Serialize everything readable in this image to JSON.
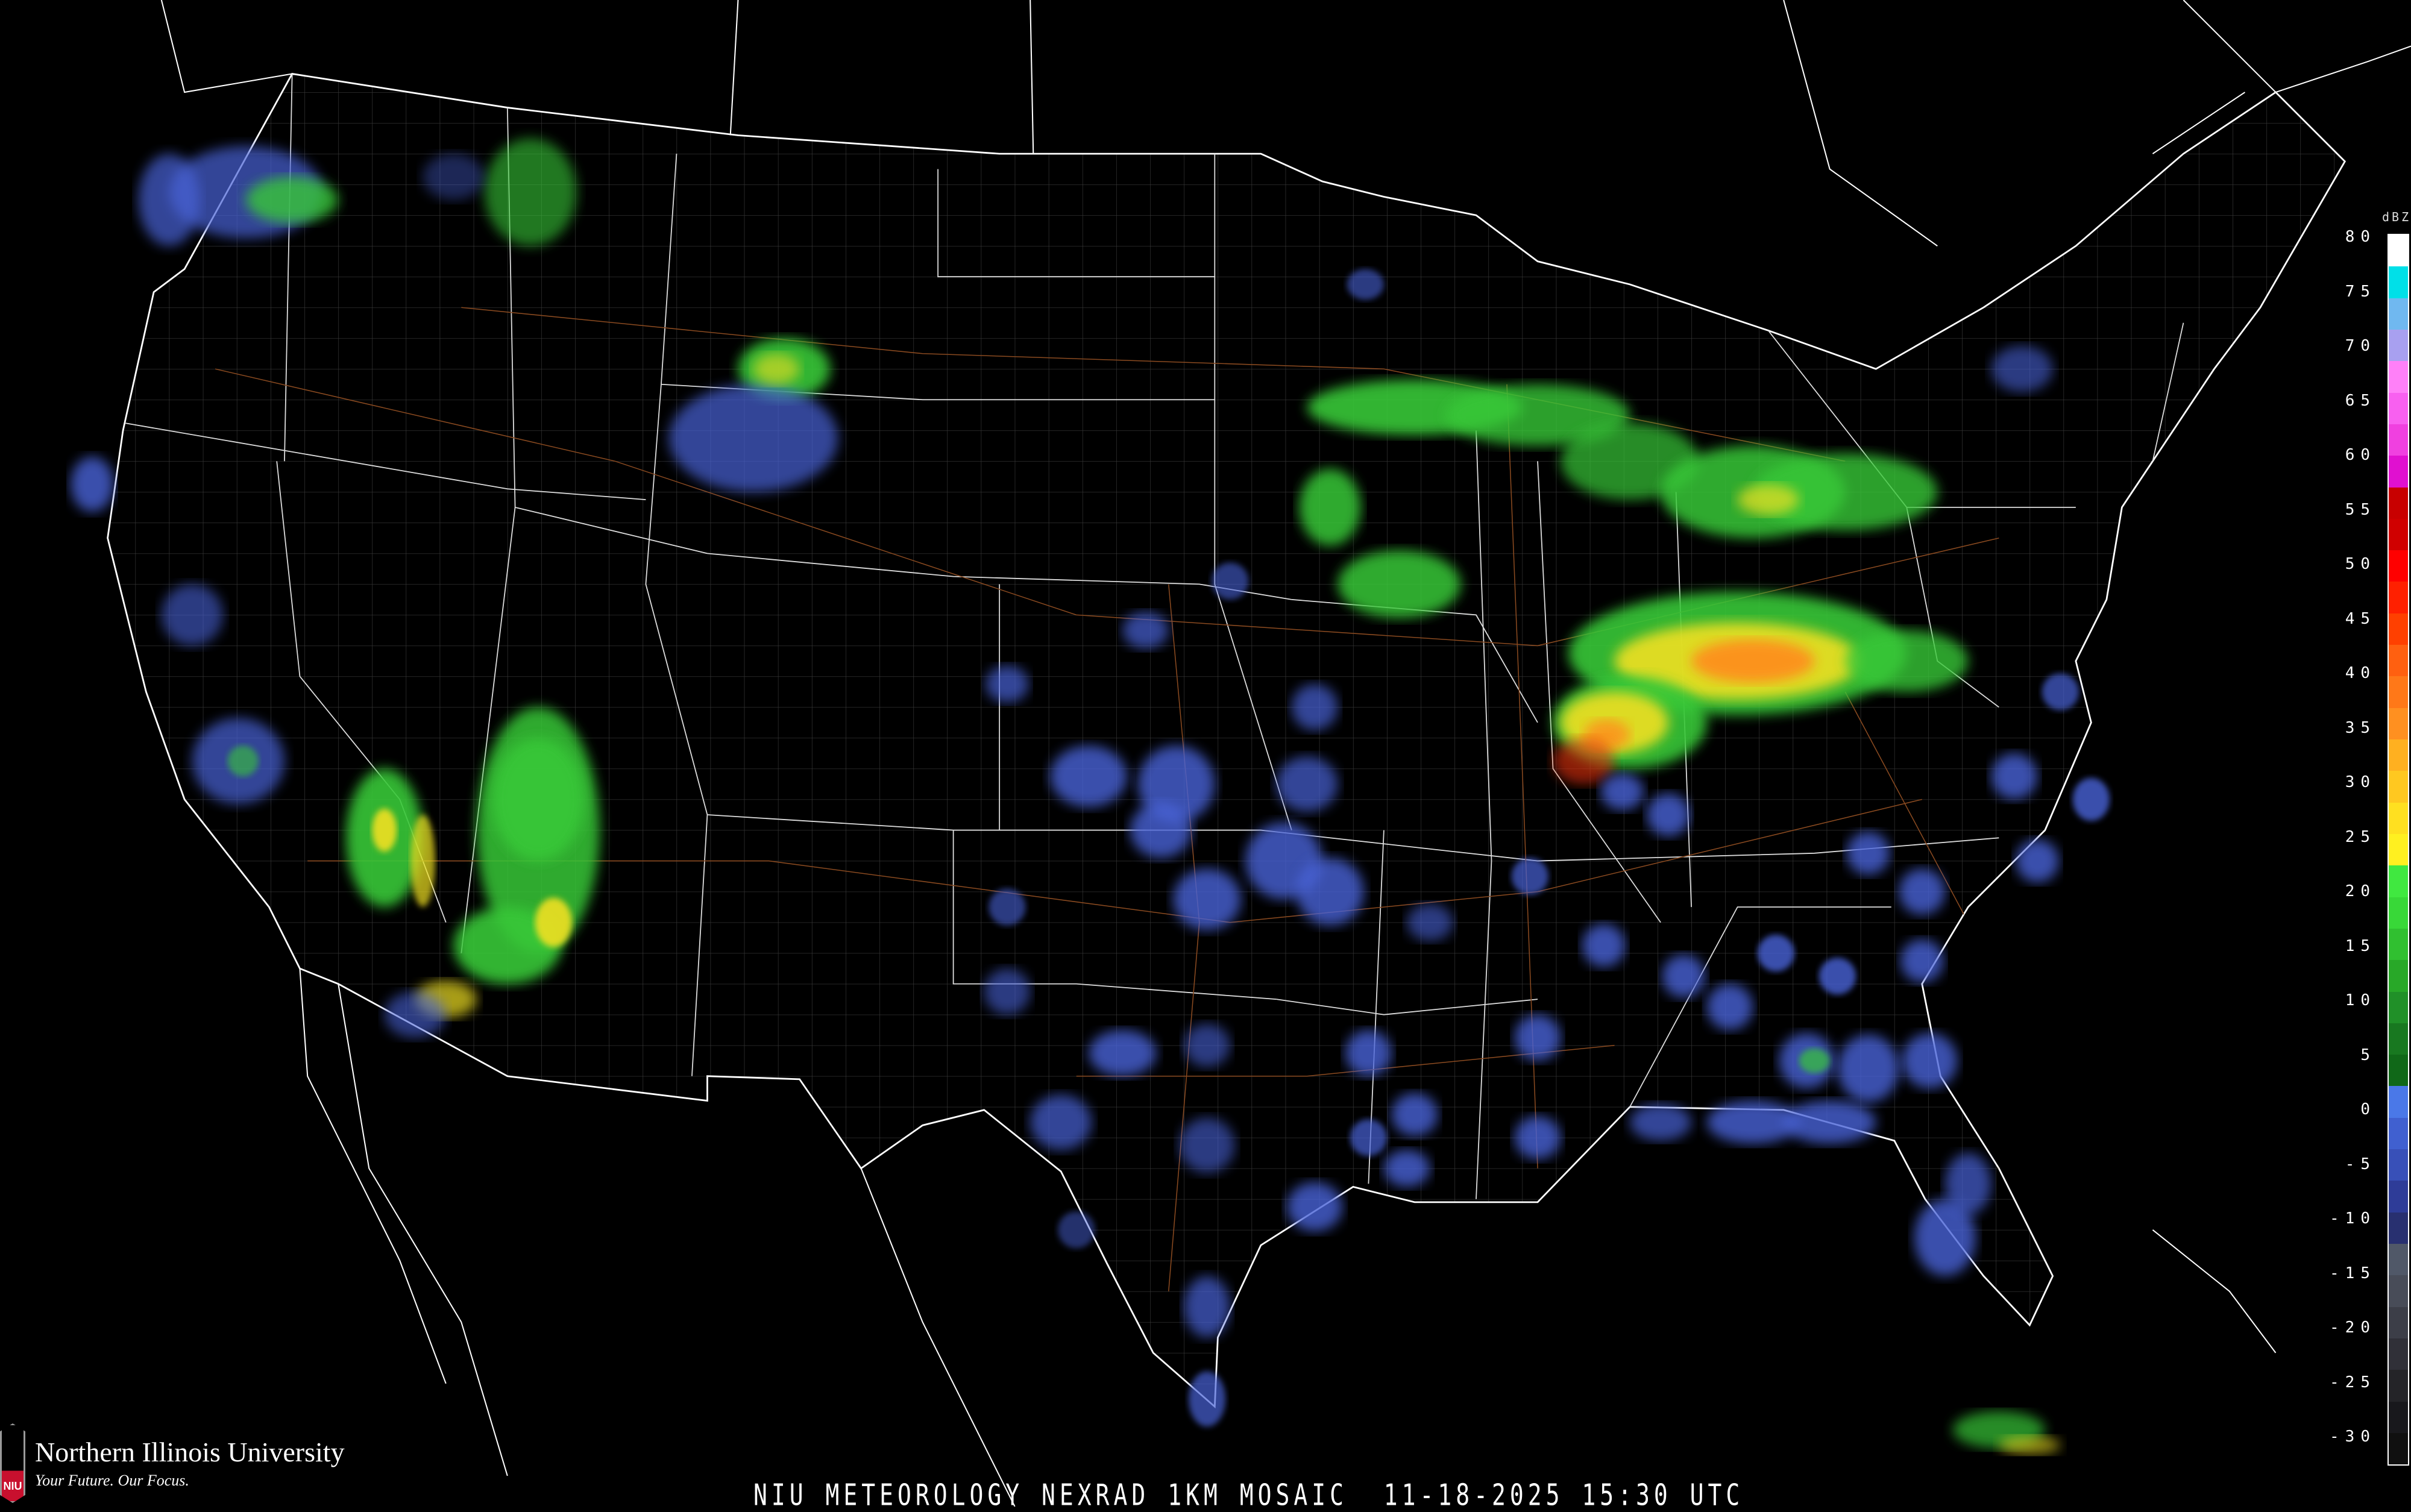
{
  "product": {
    "title": "NIU METEOROLOGY NEXRAD 1KM MOSAIC  11-18-2025 15:30 UTC"
  },
  "logo": {
    "name": "Northern Illinois University",
    "tagline": "Your Future. Our Focus.",
    "badge": "NIU"
  },
  "legend": {
    "unit": "dBZ",
    "ticks": [
      "80",
      "75",
      "70",
      "65",
      "60",
      "55",
      "50",
      "45",
      "40",
      "35",
      "30",
      "25",
      "20",
      "15",
      "10",
      "5",
      "0",
      "-5",
      "-10",
      "-15",
      "-20",
      "-25",
      "-30"
    ],
    "colors": [
      "#ffffff",
      "#00e0e8",
      "#70b8f0",
      "#a8a0f0",
      "#ff80f8",
      "#f860f0",
      "#f040e0",
      "#e010d0",
      "#c80000",
      "#d00000",
      "#ff0000",
      "#ff2000",
      "#ff4000",
      "#ff6010",
      "#ff7818",
      "#ff9020",
      "#ffb020",
      "#ffc820",
      "#ffe020",
      "#fff020",
      "#40e840",
      "#38d838",
      "#30c030",
      "#28a828",
      "#209028",
      "#187820",
      "#106818",
      "#4a78e8",
      "#4060d0",
      "#3850b8",
      "#2e3c98",
      "#283070",
      "#505868",
      "#484c58",
      "#3c3e48",
      "#303038",
      "#242428",
      "#18181c",
      "#101010"
    ]
  },
  "map": {
    "background": "#000000",
    "boundary_color": "#ffffff",
    "county_color": "#555555",
    "highway_color": "#8a4a20"
  }
}
